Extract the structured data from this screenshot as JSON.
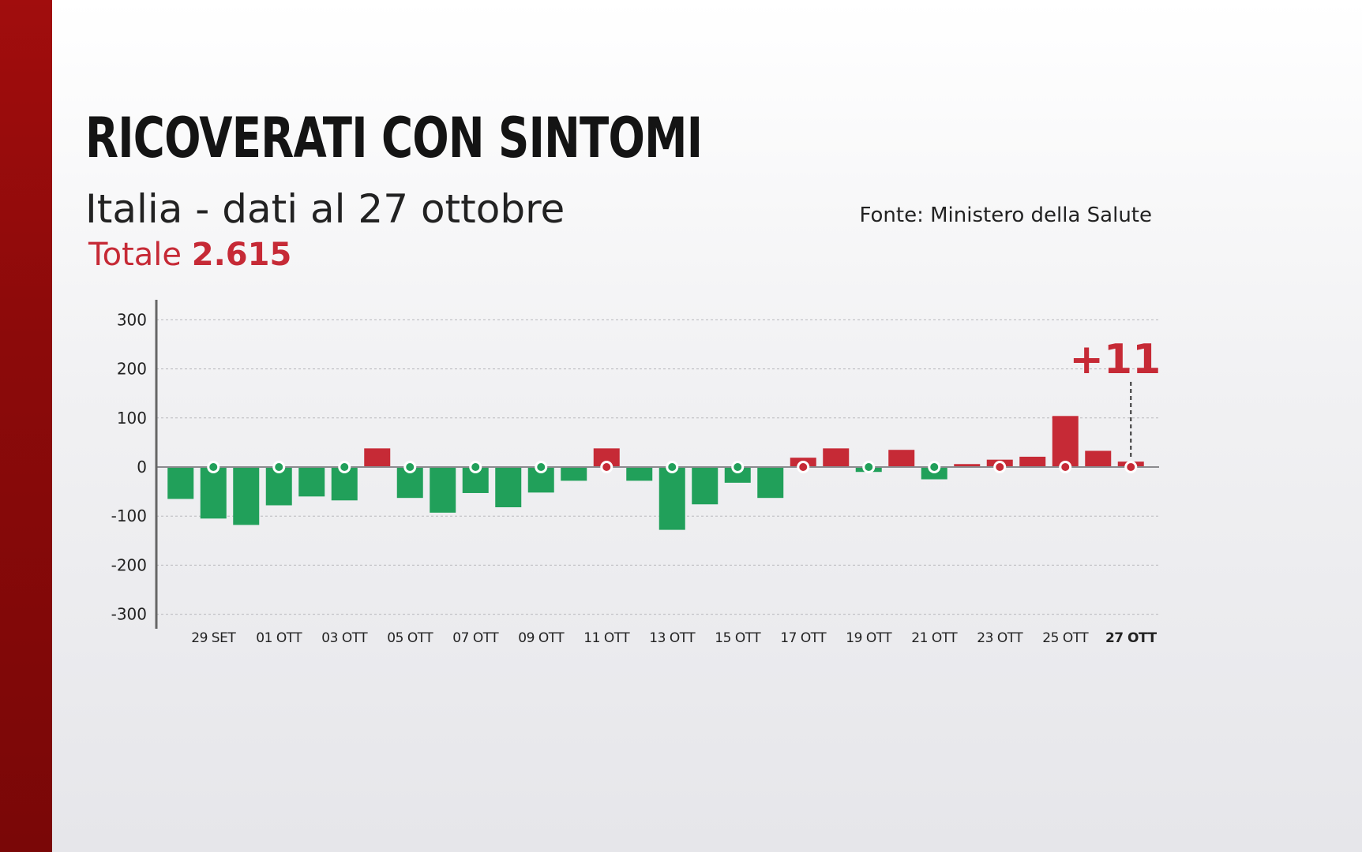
{
  "header": {
    "title": "RICOVERATI CON SINTOMI",
    "subtitle": "Italia - dati al 27 ottobre",
    "total_label": "Totale",
    "total_value": "2.615",
    "source": "Fonte: Ministero della Salute"
  },
  "colors": {
    "positive": "#c62a36",
    "negative": "#21a05a",
    "accent": "#c62a36",
    "band": "#8c0a0a"
  },
  "chart_data": {
    "type": "bar",
    "categories": [
      "28 SET",
      "29 SET",
      "30 SET",
      "01 OTT",
      "02 OTT",
      "03 OTT",
      "04 OTT",
      "05 OTT",
      "06 OTT",
      "07 OTT",
      "08 OTT",
      "09 OTT",
      "10 OTT",
      "11 OTT",
      "12 OTT",
      "13 OTT",
      "14 OTT",
      "15 OTT",
      "16 OTT",
      "17 OTT",
      "18 OTT",
      "19 OTT",
      "20 OTT",
      "21 OTT",
      "22 OTT",
      "23 OTT",
      "24 OTT",
      "25 OTT",
      "26 OTT",
      "27 OTT"
    ],
    "values": [
      -65,
      -105,
      -118,
      -78,
      -60,
      -68,
      38,
      -63,
      -93,
      -53,
      -82,
      -52,
      -28,
      38,
      -28,
      -128,
      -76,
      -32,
      -63,
      19,
      38,
      -10,
      35,
      -25,
      6,
      15,
      21,
      104,
      33,
      11
    ],
    "tick_labels": [
      "29 SET",
      "01 OTT",
      "03 OTT",
      "05 OTT",
      "07 OTT",
      "09 OTT",
      "11 OTT",
      "13 OTT",
      "15 OTT",
      "17 OTT",
      "19 OTT",
      "21 OTT",
      "23 OTT",
      "25 OTT",
      "27 OTT"
    ],
    "tick_indices": [
      1,
      3,
      5,
      7,
      9,
      11,
      13,
      15,
      17,
      19,
      21,
      23,
      25,
      27,
      29
    ],
    "yticks": [
      300,
      200,
      100,
      0,
      -100,
      -200,
      -300
    ],
    "ylim": [
      -330,
      340
    ],
    "grid": true,
    "annotation": {
      "index": 29,
      "text": "+11"
    }
  }
}
